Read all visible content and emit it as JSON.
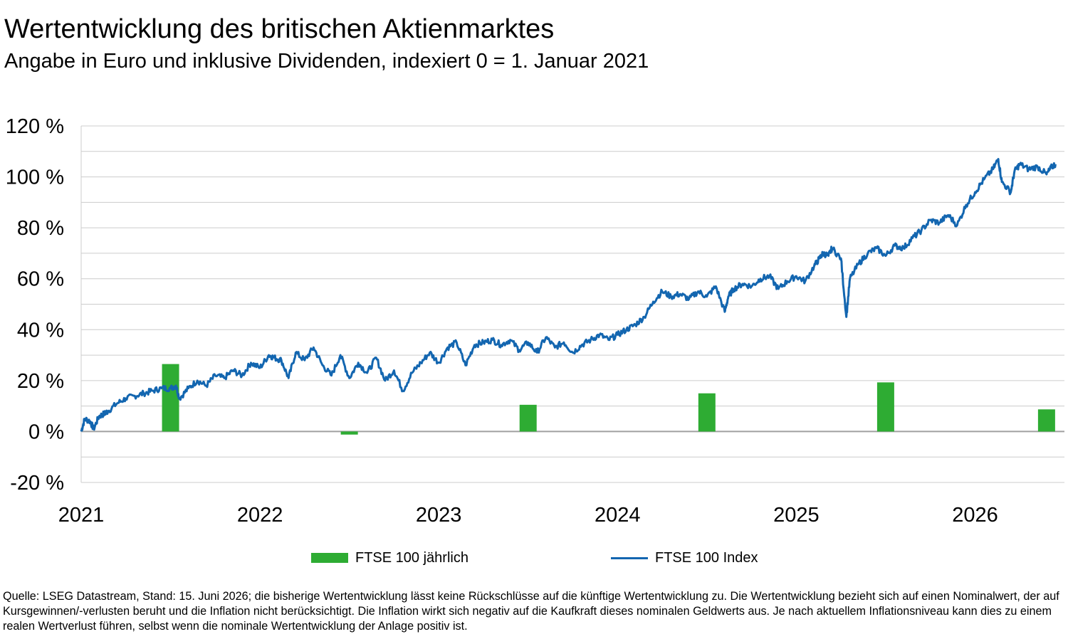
{
  "title": "Wertentwicklung des britischen Aktienmarktes",
  "subtitle": "Angabe in Euro und inklusive Dividenden, indexiert 0 = 1. Januar 2021",
  "source": "Quelle: LSEG Datastream, Stand: 15. Juni 2026; die bisherige Wertentwicklung lässt keine Rückschlüsse auf die künftige Wertentwicklung zu. Die Wertentwicklung bezieht sich auf einen Nominalwert, der auf Kursgewinnen/-verlusten beruht und die Inflation nicht berücksichtigt. Die Inflation wirkt sich negativ auf die Kaufkraft dieses nominalen Geldwerts aus. Je nach aktuellem Inflationsniveau kann dies zu einem realen Wertverlust führen, selbst wenn die nominale Wertentwicklung der Anlage positiv ist.",
  "chart_data": {
    "type": "bar+line",
    "title": "Wertentwicklung des britischen Aktienmarktes",
    "ylim": [
      -20,
      120
    ],
    "y_ticks": [
      -20,
      0,
      20,
      40,
      60,
      80,
      100,
      120
    ],
    "y_tick_labels": [
      "-20 %",
      "0 %",
      "20 %",
      "40 %",
      "60 %",
      "80 %",
      "100 %",
      "120 %"
    ],
    "xlim": [
      2021.0,
      2026.5
    ],
    "x_ticks": [
      2021,
      2022,
      2023,
      2024,
      2025,
      2026
    ],
    "x_tick_labels": [
      "2021",
      "2022",
      "2023",
      "2024",
      "2025",
      "2026"
    ],
    "grid": true,
    "legend_position": "bottom-center",
    "colors": {
      "bars": "#2eac33",
      "line": "#1366b0",
      "grid": "#cccccc"
    },
    "series": [
      {
        "name": "FTSE 100 jährlich",
        "type": "bar",
        "points": [
          {
            "x": 2021.5,
            "label": "2021",
            "value": 26.5
          },
          {
            "x": 2022.5,
            "label": "2022",
            "value": -1.2
          },
          {
            "x": 2023.5,
            "label": "2023",
            "value": 10.5
          },
          {
            "x": 2024.5,
            "label": "2024",
            "value": 15.0
          },
          {
            "x": 2025.5,
            "label": "2025",
            "value": 19.3
          },
          {
            "x": 2026.4,
            "label": "2026",
            "value": 8.7
          }
        ]
      },
      {
        "name": "FTSE 100 Index",
        "type": "line",
        "x": [
          2021.0,
          2021.02,
          2021.05,
          2021.07,
          2021.1,
          2021.13,
          2021.15,
          2021.2,
          2021.25,
          2021.3,
          2021.35,
          2021.4,
          2021.45,
          2021.5,
          2021.53,
          2021.55,
          2021.6,
          2021.65,
          2021.7,
          2021.75,
          2021.8,
          2021.85,
          2021.9,
          2021.95,
          2022.0,
          2022.05,
          2022.08,
          2022.12,
          2022.16,
          2022.2,
          2022.25,
          2022.3,
          2022.35,
          2022.4,
          2022.45,
          2022.5,
          2022.55,
          2022.6,
          2022.65,
          2022.7,
          2022.75,
          2022.8,
          2022.85,
          2022.9,
          2022.95,
          2023.0,
          2023.05,
          2023.1,
          2023.15,
          2023.2,
          2023.25,
          2023.3,
          2023.35,
          2023.4,
          2023.45,
          2023.5,
          2023.55,
          2023.6,
          2023.65,
          2023.7,
          2023.75,
          2023.8,
          2023.85,
          2023.9,
          2023.95,
          2024.0,
          2024.05,
          2024.1,
          2024.15,
          2024.2,
          2024.25,
          2024.3,
          2024.35,
          2024.4,
          2024.45,
          2024.5,
          2024.55,
          2024.6,
          2024.62,
          2024.65,
          2024.7,
          2024.75,
          2024.8,
          2024.85,
          2024.9,
          2024.95,
          2025.0,
          2025.05,
          2025.1,
          2025.13,
          2025.15,
          2025.18,
          2025.2,
          2025.25,
          2025.28,
          2025.3,
          2025.35,
          2025.4,
          2025.45,
          2025.5,
          2025.55,
          2025.6,
          2025.65,
          2025.7,
          2025.75,
          2025.8,
          2025.85,
          2025.9,
          2025.95,
          2026.0,
          2026.05,
          2026.1,
          2026.13,
          2026.15,
          2026.2,
          2026.22,
          2026.25,
          2026.3,
          2026.35,
          2026.4,
          2026.43,
          2026.45
        ],
        "values": [
          0,
          5,
          4,
          1,
          6,
          7,
          8,
          11,
          13,
          14,
          15,
          16,
          17,
          17,
          18,
          13,
          17,
          20,
          18,
          22,
          21,
          24,
          22,
          27,
          25,
          30,
          29,
          28,
          21,
          31,
          28,
          33,
          26,
          22,
          30,
          21,
          27,
          23,
          29,
          20,
          24,
          16,
          23,
          27,
          31,
          27,
          33,
          35,
          26,
          34,
          35,
          36,
          34,
          36,
          32,
          35,
          31,
          37,
          33,
          35,
          31,
          34,
          36,
          38,
          36,
          38,
          40,
          42,
          45,
          51,
          55,
          53,
          54,
          52,
          55,
          53,
          57,
          47,
          53,
          56,
          58,
          57,
          60,
          61,
          56,
          59,
          61,
          59,
          65,
          68,
          70,
          69,
          72,
          68,
          45,
          60,
          66,
          70,
          72,
          69,
          73,
          72,
          76,
          79,
          83,
          82,
          85,
          81,
          89,
          94,
          99,
          103,
          107,
          98,
          94,
          102,
          105,
          103,
          104,
          101,
          104,
          105
        ]
      }
    ]
  }
}
